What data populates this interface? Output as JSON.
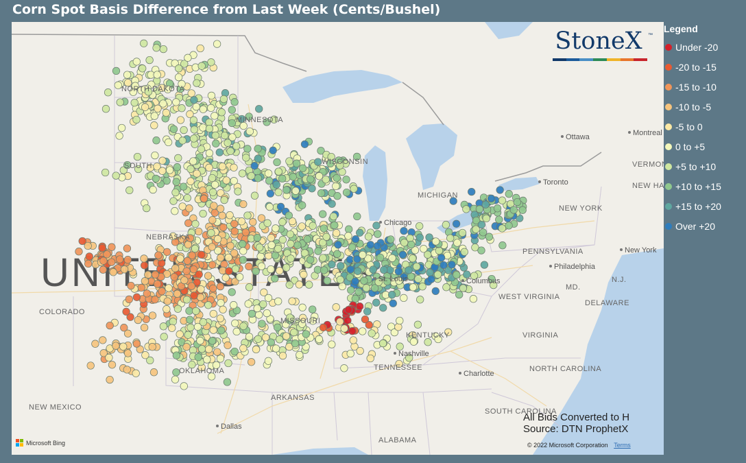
{
  "title": "Corn Spot Basis Difference from Last Week (Cents/Bushel)",
  "logo": {
    "text": "StoneX",
    "tm": "™",
    "bar_colors": [
      "#123a6a",
      "#1c5b9b",
      "#4a8fc6",
      "#2e8b57",
      "#f0b429",
      "#e8762c",
      "#c8252c"
    ]
  },
  "legend": {
    "title": "Legend",
    "items": [
      {
        "label": "Under -20",
        "color": "#d4202a"
      },
      {
        "label": "-20 to -15",
        "color": "#e85a32"
      },
      {
        "label": "-15 to -10",
        "color": "#f0955a"
      },
      {
        "label": "-10 to -5",
        "color": "#f6c47e"
      },
      {
        "label": "-5 to 0",
        "color": "#fbe8a5"
      },
      {
        "label": "0 to +5",
        "color": "#f3f7bb"
      },
      {
        "label": "+5 to +10",
        "color": "#cfe7a1"
      },
      {
        "label": "+10 to +15",
        "color": "#90c88e"
      },
      {
        "label": "+15 to +20",
        "color": "#5fa7a0"
      },
      {
        "label": "Over +20",
        "color": "#2e7dbd"
      }
    ]
  },
  "map": {
    "states": [
      "NORTH DAKOTA",
      "MINNESOTA",
      "SOUTH",
      "WISCONSIN",
      "MICHIGAN",
      "NEBRASKA",
      "COLORADO",
      "MISSOURI",
      "KENTUCKY",
      "TENNESSEE",
      "OKLAHOMA",
      "ARKANSAS",
      "NEW MEXICO",
      "ALABAMA",
      "WEST VIRGINIA",
      "VIRGINIA",
      "NORTH CAROLINA",
      "SOUTH CAROLINA",
      "PENNSYLVANIA",
      "NEW YORK",
      "VERMONT",
      "NEW HAMPSHIRE",
      "DELAWARE",
      "MD.",
      "N.J.",
      "UNITED STATES"
    ],
    "cities": [
      "Ottawa",
      "Montreal",
      "Toronto",
      "Chicago",
      "Columbus",
      "Nashville",
      "Charlotte",
      "Dallas",
      "Philadelphia",
      "New York",
      "St. Louis"
    ]
  },
  "note": {
    "line1": "All Bids Converted to H",
    "line2": "Source: DTN ProphetX"
  },
  "attribution": {
    "bing": "Microsoft Bing",
    "copyright": "© 2022 Microsoft Corporation",
    "terms": "Terms"
  }
}
